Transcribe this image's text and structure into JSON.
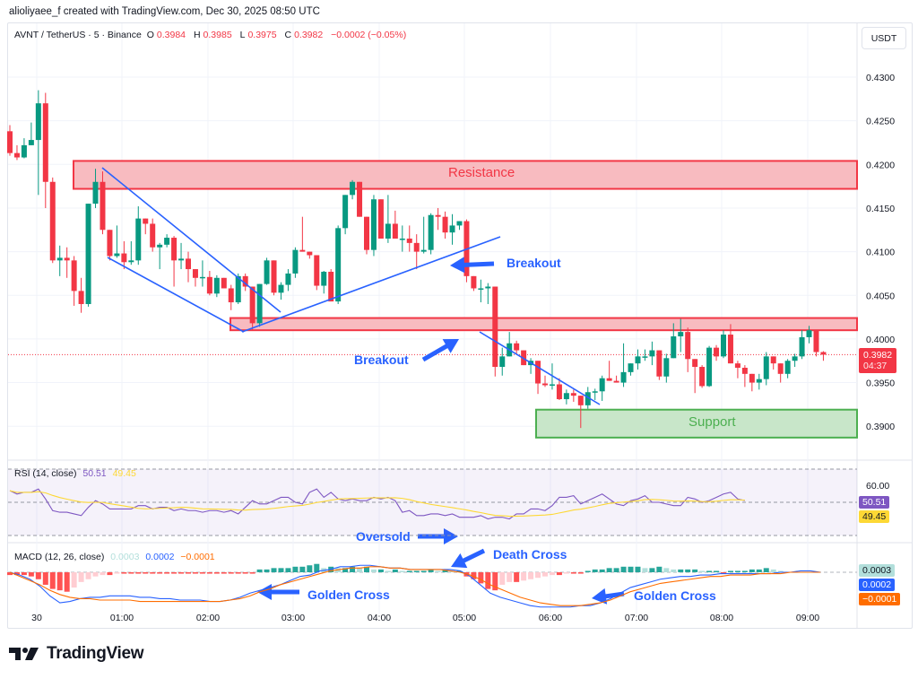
{
  "header": {
    "caption": "alioliyaee_f created with TradingView.com, Dec 30, 2025 08:50 UTC",
    "symbol": "AVNT / TetherUS · 5 · Binance",
    "ohlc": {
      "o_label": "O",
      "o": "0.3984",
      "h_label": "H",
      "h": "0.3985",
      "l_label": "L",
      "l": "0.3975",
      "c_label": "C",
      "c": "0.3982",
      "change": "−0.0002 (−0.05%)"
    },
    "currency": "USDT"
  },
  "price_axis": {
    "ticks": [
      "0.4300",
      "0.4250",
      "0.4200",
      "0.4150",
      "0.4100",
      "0.4050",
      "0.4000",
      "0.3950",
      "0.3900"
    ],
    "last_price": "0.3982",
    "countdown": "04:37"
  },
  "time_axis": {
    "ticks": [
      "30",
      "01:00",
      "02:00",
      "03:00",
      "04:00",
      "05:00",
      "06:00",
      "07:00",
      "08:00",
      "09:00"
    ]
  },
  "annotations": {
    "resistance": "Resistance",
    "support": "Support",
    "breakout_1": "Breakout",
    "breakout_2": "Breakout",
    "oversold": "Oversold",
    "death_cross": "Death Cross",
    "golden_cross_1": "Golden Cross",
    "golden_cross_2": "Golden Cross"
  },
  "rsi": {
    "title": "RSI (14, close)",
    "value": "50.51",
    "ma_value": "49.45",
    "level_label": "60.00"
  },
  "macd": {
    "title": "MACD (12, 26, close)",
    "hist": "0.0003",
    "macd": "0.0002",
    "signal": "−0.0001"
  },
  "brand": {
    "name": "TradingView"
  },
  "colors": {
    "up": "#089981",
    "down": "#f23645",
    "resistance_fill": "#f8bbc0",
    "support_fill": "#c8e6c9",
    "trendline": "#2962ff",
    "rsi": "#7e57c2",
    "rsi_ma": "#fdd835",
    "macd": "#2962ff",
    "signal": "#ff6d00"
  },
  "chart_data": {
    "type": "candlestick",
    "title": "AVNT / TetherUS · 5 · Binance",
    "xlabel": "",
    "ylabel": "USDT",
    "ylim": [
      0.387,
      0.432
    ],
    "interval": "5m",
    "x_start": "Dec 30 00:00",
    "candles": [
      [
        0.4238,
        0.4245,
        0.421,
        0.4213
      ],
      [
        0.4213,
        0.4222,
        0.4205,
        0.4208
      ],
      [
        0.4208,
        0.423,
        0.4207,
        0.4222
      ],
      [
        0.4222,
        0.4248,
        0.4222,
        0.4228
      ],
      [
        0.4228,
        0.4285,
        0.4165,
        0.427
      ],
      [
        0.427,
        0.4282,
        0.415,
        0.418
      ],
      [
        0.418,
        0.4185,
        0.4087,
        0.409
      ],
      [
        0.409,
        0.4107,
        0.4072,
        0.4093
      ],
      [
        0.4093,
        0.4105,
        0.407,
        0.409
      ],
      [
        0.409,
        0.4095,
        0.4038,
        0.4055
      ],
      [
        0.4055,
        0.407,
        0.403,
        0.404
      ],
      [
        0.404,
        0.415,
        0.4037,
        0.4155
      ],
      [
        0.4155,
        0.4195,
        0.415,
        0.418
      ],
      [
        0.418,
        0.4192,
        0.412,
        0.4125
      ],
      [
        0.4125,
        0.4125,
        0.409,
        0.4095
      ],
      [
        0.4095,
        0.413,
        0.4093,
        0.4098
      ],
      [
        0.4098,
        0.4112,
        0.408,
        0.4088
      ],
      [
        0.4088,
        0.4112,
        0.4085,
        0.409
      ],
      [
        0.409,
        0.4152,
        0.4085,
        0.4138
      ],
      [
        0.4138,
        0.4135,
        0.412,
        0.4132
      ],
      [
        0.4132,
        0.4138,
        0.41,
        0.4105
      ],
      [
        0.4105,
        0.411,
        0.408,
        0.4108
      ],
      [
        0.4108,
        0.412,
        0.4105,
        0.4116
      ],
      [
        0.4116,
        0.4118,
        0.406,
        0.409
      ],
      [
        0.409,
        0.411,
        0.408,
        0.4092
      ],
      [
        0.4092,
        0.41,
        0.4065,
        0.408
      ],
      [
        0.408,
        0.408,
        0.406,
        0.407
      ],
      [
        0.407,
        0.409,
        0.406,
        0.4071
      ],
      [
        0.4071,
        0.4078,
        0.405,
        0.4052
      ],
      [
        0.4052,
        0.4073,
        0.4048,
        0.407
      ],
      [
        0.407,
        0.406,
        0.4058,
        0.4058
      ],
      [
        0.4058,
        0.4062,
        0.4033,
        0.4042
      ],
      [
        0.4042,
        0.4075,
        0.404,
        0.4072
      ],
      [
        0.4072,
        0.4075,
        0.4055,
        0.406
      ],
      [
        0.406,
        0.406,
        0.401,
        0.4018
      ],
      [
        0.4018,
        0.406,
        0.4014,
        0.4063
      ],
      [
        0.4063,
        0.4093,
        0.4062,
        0.409
      ],
      [
        0.409,
        0.409,
        0.405,
        0.4053
      ],
      [
        0.4053,
        0.4065,
        0.4045,
        0.4062
      ],
      [
        0.4062,
        0.408,
        0.4055,
        0.4075
      ],
      [
        0.4075,
        0.4105,
        0.407,
        0.4102
      ],
      [
        0.4102,
        0.414,
        0.41,
        0.41
      ],
      [
        0.41,
        0.4098,
        0.4092,
        0.4096
      ],
      [
        0.4096,
        0.4096,
        0.4056,
        0.4061
      ],
      [
        0.4061,
        0.4078,
        0.4052,
        0.4077
      ],
      [
        0.4077,
        0.408,
        0.4043,
        0.4043
      ],
      [
        0.4043,
        0.413,
        0.404,
        0.4127
      ],
      [
        0.4127,
        0.4165,
        0.412,
        0.4165
      ],
      [
        0.4165,
        0.4182,
        0.416,
        0.418
      ],
      [
        0.418,
        0.418,
        0.414,
        0.414
      ],
      [
        0.414,
        0.414,
        0.4097,
        0.4102
      ],
      [
        0.4102,
        0.4165,
        0.4095,
        0.416
      ],
      [
        0.416,
        0.416,
        0.4115,
        0.4115
      ],
      [
        0.4115,
        0.4165,
        0.411,
        0.4132
      ],
      [
        0.4132,
        0.4147,
        0.4115,
        0.4115
      ],
      [
        0.4115,
        0.413,
        0.41,
        0.4115
      ],
      [
        0.4115,
        0.413,
        0.41,
        0.411
      ],
      [
        0.411,
        0.412,
        0.408,
        0.41
      ],
      [
        0.41,
        0.414,
        0.4098,
        0.4102
      ],
      [
        0.4102,
        0.4144,
        0.4097,
        0.4142
      ],
      [
        0.4142,
        0.415,
        0.4125,
        0.414
      ],
      [
        0.414,
        0.4146,
        0.4115,
        0.4122
      ],
      [
        0.4122,
        0.4143,
        0.4108,
        0.413
      ],
      [
        0.413,
        0.4135,
        0.4125,
        0.4135
      ],
      [
        0.4135,
        0.4137,
        0.4065,
        0.4072
      ],
      [
        0.4072,
        0.4072,
        0.4055,
        0.4058
      ],
      [
        0.4058,
        0.4068,
        0.4042,
        0.4058
      ],
      [
        0.4058,
        0.4064,
        0.404,
        0.406
      ],
      [
        0.406,
        0.406,
        0.3957,
        0.3968
      ],
      [
        0.3968,
        0.399,
        0.3958,
        0.398
      ],
      [
        0.398,
        0.4008,
        0.3985,
        0.3995
      ],
      [
        0.3995,
        0.3998,
        0.3983,
        0.3987
      ],
      [
        0.3987,
        0.3975,
        0.397,
        0.397
      ],
      [
        0.397,
        0.3978,
        0.396,
        0.3975
      ],
      [
        0.3975,
        0.3975,
        0.3937,
        0.3949
      ],
      [
        0.3949,
        0.3958,
        0.3945,
        0.3947
      ],
      [
        0.3947,
        0.3972,
        0.3942,
        0.3948
      ],
      [
        0.3948,
        0.3955,
        0.393,
        0.3931
      ],
      [
        0.3931,
        0.3942,
        0.3925,
        0.3938
      ],
      [
        0.3938,
        0.3942,
        0.3928,
        0.3935
      ],
      [
        0.3935,
        0.3935,
        0.3898,
        0.3924
      ],
      [
        0.3924,
        0.3945,
        0.392,
        0.3939
      ],
      [
        0.3939,
        0.3943,
        0.393,
        0.394
      ],
      [
        0.394,
        0.3958,
        0.3929,
        0.3955
      ],
      [
        0.3955,
        0.3975,
        0.3952,
        0.3952
      ],
      [
        0.3952,
        0.3958,
        0.395,
        0.395
      ],
      [
        0.395,
        0.3995,
        0.3945,
        0.3962
      ],
      [
        0.3962,
        0.3972,
        0.3958,
        0.3972
      ],
      [
        0.3972,
        0.3988,
        0.3965,
        0.398
      ],
      [
        0.398,
        0.3988,
        0.3975,
        0.398
      ],
      [
        0.398,
        0.3997,
        0.397,
        0.3987
      ],
      [
        0.3987,
        0.3985,
        0.3953,
        0.3957
      ],
      [
        0.3957,
        0.3983,
        0.395,
        0.3978
      ],
      [
        0.3978,
        0.4018,
        0.3978,
        0.4003
      ],
      [
        0.4003,
        0.4023,
        0.3985,
        0.4008
      ],
      [
        0.4008,
        0.4013,
        0.3962,
        0.3977
      ],
      [
        0.3977,
        0.3975,
        0.3938,
        0.3968
      ],
      [
        0.3968,
        0.397,
        0.3944,
        0.3946
      ],
      [
        0.3946,
        0.3992,
        0.3945,
        0.399
      ],
      [
        0.399,
        0.3993,
        0.3975,
        0.398
      ],
      [
        0.398,
        0.401,
        0.3978,
        0.4005
      ],
      [
        0.4005,
        0.4017,
        0.3972,
        0.3972
      ],
      [
        0.3972,
        0.3975,
        0.3955,
        0.3967
      ],
      [
        0.3967,
        0.397,
        0.3945,
        0.396
      ],
      [
        0.396,
        0.396,
        0.394,
        0.395
      ],
      [
        0.395,
        0.396,
        0.3942,
        0.3954
      ],
      [
        0.3954,
        0.3985,
        0.3947,
        0.398
      ],
      [
        0.398,
        0.398,
        0.3965,
        0.3972
      ],
      [
        0.3972,
        0.3972,
        0.395,
        0.396
      ],
      [
        0.396,
        0.3977,
        0.3955,
        0.3975
      ],
      [
        0.3975,
        0.3983,
        0.3968,
        0.398
      ],
      [
        0.398,
        0.401,
        0.3977,
        0.4002
      ],
      [
        0.4002,
        0.4015,
        0.3995,
        0.401
      ],
      [
        0.401,
        0.401,
        0.398,
        0.3985
      ],
      [
        0.3985,
        0.3986,
        0.3975,
        0.3982
      ]
    ],
    "zones": [
      {
        "label": "Resistance",
        "top": 0.4204,
        "bottom": 0.4172,
        "x_from": 82,
        "x_to": 956
      },
      {
        "label": "",
        "top": 0.4024,
        "bottom": 0.401,
        "x_from": 257,
        "x_to": 956
      },
      {
        "label": "Support",
        "top": 0.3919,
        "bottom": 0.3887,
        "x_from": 598,
        "x_to": 956
      }
    ],
    "trendlines": [
      [
        [
          114,
          187
        ],
        [
          313,
          348
        ]
      ],
      [
        [
          120,
          287
        ],
        [
          272,
          370
        ]
      ],
      [
        [
          270,
          370
        ],
        [
          558,
          264
        ]
      ],
      [
        [
          535,
          370
        ],
        [
          669,
          451
        ]
      ]
    ],
    "rsi_series": [
      57,
      55,
      56,
      56,
      58,
      52,
      45,
      44,
      44,
      43,
      42,
      47,
      51,
      49,
      46,
      46,
      46,
      46,
      48,
      48,
      46,
      47,
      47,
      45,
      46,
      45,
      45,
      44,
      45,
      45,
      44,
      45,
      43,
      47,
      51,
      49,
      49,
      51,
      53,
      53,
      50,
      49,
      56,
      58,
      53,
      56,
      52,
      51,
      52,
      51,
      51,
      53,
      52,
      53,
      51,
      44,
      45,
      42,
      42,
      43,
      43,
      42,
      43,
      41,
      41,
      41,
      42,
      40,
      41,
      41,
      40,
      43,
      43,
      46,
      46,
      45,
      48,
      53,
      53,
      54,
      49,
      51,
      53,
      55,
      52,
      49,
      48,
      51,
      52,
      54,
      50,
      50,
      49,
      48,
      48,
      53,
      52,
      50,
      51,
      53,
      55,
      56,
      52,
      51
    ],
    "rsi_levels": {
      "upper": 70,
      "middle": 50,
      "lower": 30,
      "tick": 60
    },
    "macd_hist": [
      -2,
      -2,
      -2,
      -3,
      -5,
      -9,
      -12,
      -13,
      -14,
      -11,
      -7,
      -5,
      -3,
      -2,
      -2,
      -1,
      -1,
      -1,
      -1,
      -1,
      -1,
      -1,
      -1,
      -1,
      -1,
      -1,
      -1,
      -1,
      -1,
      -1,
      -1,
      -1,
      -1,
      -1,
      -1,
      2,
      2,
      3,
      3,
      3,
      4,
      4,
      5,
      6,
      3,
      4,
      3,
      3,
      4,
      3,
      4,
      2,
      2,
      1,
      2,
      1,
      1,
      1,
      1,
      2,
      1,
      2,
      1,
      1,
      -3,
      -5,
      -8,
      -12,
      -13,
      -9,
      -7,
      -7,
      -6,
      -5,
      -4,
      -3,
      -2,
      -2,
      -1,
      -1,
      -1,
      1,
      2,
      2,
      3,
      3,
      4,
      4,
      4,
      3,
      3,
      4,
      3,
      2,
      2,
      2,
      2,
      1,
      1,
      1,
      -1,
      1,
      1,
      1,
      2,
      2,
      3,
      2,
      1
    ],
    "macd_line": [
      0,
      -2,
      -5,
      -10,
      -17,
      -22,
      -21,
      -19,
      -18,
      -18,
      -17,
      -17,
      -17,
      -18,
      -18,
      -19,
      -19,
      -20,
      -20,
      -20,
      -21,
      -21,
      -20,
      -18,
      -15,
      -13,
      -11,
      -9,
      -6,
      -3,
      -2,
      1,
      2,
      4,
      4,
      5,
      5,
      4,
      3,
      3,
      2,
      2,
      2,
      2,
      2,
      1,
      -3,
      -9,
      -15,
      -18,
      -20,
      -22,
      -24,
      -25,
      -25,
      -25,
      -25,
      -24,
      -24,
      -22,
      -19,
      -15,
      -11,
      -9,
      -7,
      -5,
      -4,
      -3,
      -3,
      -2,
      -2,
      -1,
      -1,
      -1,
      -1,
      -1,
      -1,
      0,
      0,
      1,
      1,
      0
    ],
    "macd_signal": [
      0,
      -3,
      -6,
      -9,
      -13,
      -16,
      -18,
      -19,
      -19,
      -20,
      -20,
      -20,
      -20,
      -21,
      -21,
      -21,
      -21,
      -21,
      -21,
      -21,
      -21,
      -21,
      -20,
      -19,
      -17,
      -14,
      -12,
      -9,
      -7,
      -5,
      -3,
      -1,
      1,
      2,
      3,
      3,
      4,
      4,
      3,
      3,
      2,
      2,
      2,
      2,
      1,
      0,
      -2,
      -5,
      -9,
      -12,
      -15,
      -18,
      -20,
      -22,
      -23,
      -24,
      -24,
      -24,
      -23,
      -22,
      -20,
      -17,
      -14,
      -12,
      -10,
      -8,
      -7,
      -6,
      -5,
      -4,
      -3,
      -3,
      -2,
      -2,
      -2,
      -1,
      -1,
      -1,
      0,
      0,
      0,
      0
    ]
  }
}
